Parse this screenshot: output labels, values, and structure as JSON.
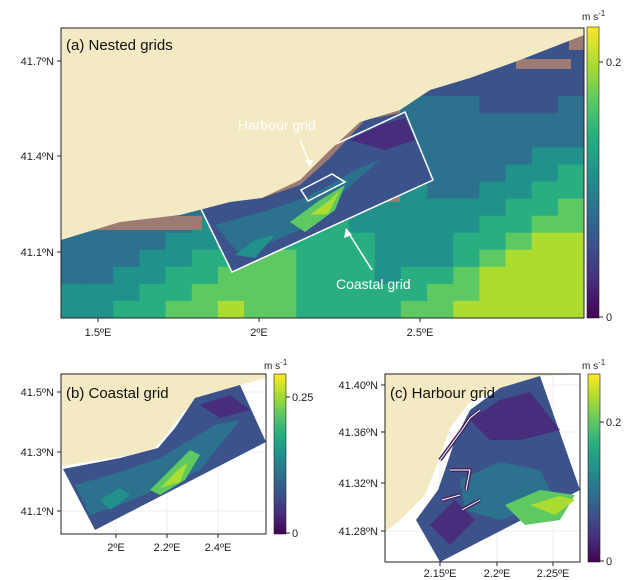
{
  "colors": {
    "land": "#f3eac3",
    "land_mask": "#9b7b73",
    "grid_outline": "#ffffff",
    "grid_lines": "#e6e6e6",
    "colormap": [
      "#440154",
      "#472d7b",
      "#3b528b",
      "#2c728e",
      "#21918c",
      "#28ae80",
      "#5ec962",
      "#addc30",
      "#fde725"
    ]
  },
  "panel_a": {
    "title": "(a) Nested grids",
    "unit": "m s",
    "unit_exp": "-1",
    "y_ticks": [
      "41.7ºN",
      "41.4ºN",
      "41.1ºN"
    ],
    "x_ticks": [
      "1.5ºE",
      "2ºE",
      "2.5ºE"
    ],
    "colorbar_ticks": [
      "0.2",
      "0"
    ],
    "label_harbour": "Harbour grid",
    "label_coastal": "Coastal grid"
  },
  "panel_b": {
    "title": "(b) Coastal grid",
    "unit": "m s",
    "unit_exp": "-1",
    "y_ticks": [
      "41.5ºN",
      "41.3ºN",
      "41.1ºN"
    ],
    "x_ticks": [
      "2ºE",
      "2.2ºE",
      "2.4ºE"
    ],
    "colorbar_ticks": [
      "0.25",
      "0"
    ]
  },
  "panel_c": {
    "title": "(c) Harbour grid",
    "unit": "m s",
    "unit_exp": "-1",
    "y_ticks": [
      "41.40ºN",
      "41.36ºN",
      "41.32ºN",
      "41.28ºN"
    ],
    "x_ticks": [
      "2.15ºE",
      "2.2ºE",
      "2.25ºE"
    ],
    "colorbar_ticks": [
      "0.2",
      "0"
    ]
  }
}
